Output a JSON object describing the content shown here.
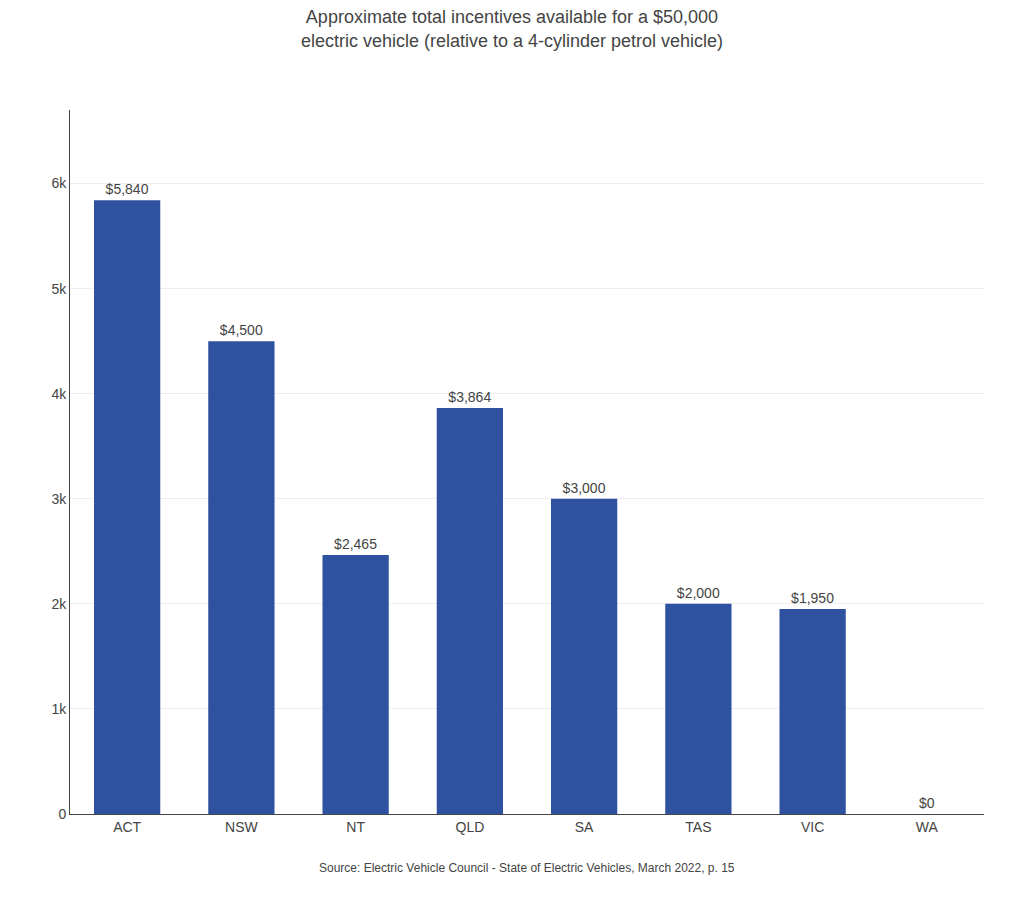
{
  "chart_data": {
    "type": "bar",
    "title": "Approximate total incentives available for a $50,000\nelectric vehicle (relative to a 4-cylinder petrol vehicle)",
    "categories": [
      "ACT",
      "NSW",
      "NT",
      "QLD",
      "SA",
      "TAS",
      "VIC",
      "WA"
    ],
    "values": [
      5840,
      4500,
      2465,
      3864,
      3000,
      2000,
      1950,
      0
    ],
    "value_labels": [
      "$5,840",
      "$4,500",
      "$2,465",
      "$3,864",
      "$3,000",
      "$2,000",
      "$1,950",
      "$0"
    ],
    "data_labels": true,
    "color": "#2e52a0",
    "ylim": [
      0,
      6700
    ],
    "yticks": [
      0,
      {
        "value": 1000,
        "label": "1k"
      },
      {
        "value": 2000,
        "label": "2k"
      },
      {
        "value": 3000,
        "label": "3k"
      },
      {
        "value": 4000,
        "label": "4k"
      },
      {
        "value": 5000,
        "label": "5k"
      },
      {
        "value": 6000,
        "label": "6k"
      }
    ],
    "grid": true,
    "annotations": [
      "Source: Electric Vehicle Council - State of Electric Vehicles, March 2022, p. 15"
    ]
  }
}
